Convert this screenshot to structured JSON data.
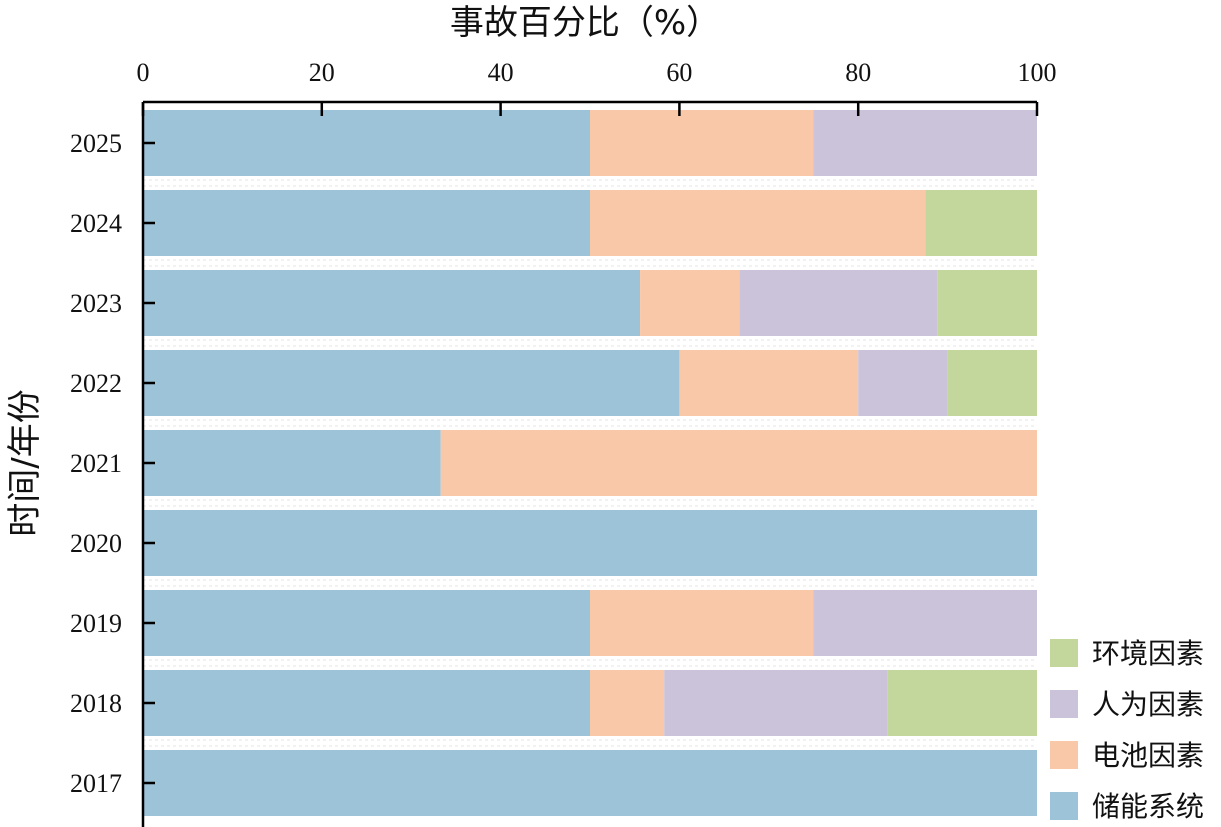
{
  "chart_data": {
    "type": "bar",
    "orientation": "horizontal",
    "stacked": true,
    "xlabel": "事故百分比（%）",
    "ylabel": "时间/年份",
    "xlim": [
      0,
      100
    ],
    "xticks": [
      "0",
      "20",
      "40",
      "60",
      "80",
      "100"
    ],
    "x_axis_position": "top",
    "categories": [
      "2025",
      "2024",
      "2023",
      "2022",
      "2021",
      "2020",
      "2019",
      "2018",
      "2017"
    ],
    "series": [
      {
        "name": "储能系统",
        "color": "#9dc3d8",
        "values": [
          50,
          50,
          55.6,
          60,
          33.3,
          100,
          50,
          50,
          100
        ]
      },
      {
        "name": "电池因素",
        "color": "#f9c8a8",
        "values": [
          25,
          37.5,
          11.1,
          20,
          66.7,
          0,
          25,
          8.3,
          0
        ]
      },
      {
        "name": "人为因素",
        "color": "#cbc3da",
        "values": [
          25,
          0,
          22.2,
          10,
          0,
          0,
          25,
          25,
          0
        ]
      },
      {
        "name": "环境因素",
        "color": "#c3d69b",
        "values": [
          0,
          12.5,
          11.1,
          10,
          0,
          0,
          0,
          16.7,
          0
        ]
      }
    ],
    "legend_position": "bottom-right",
    "legend_order": [
      "环境因素",
      "人为因素",
      "电池因素",
      "储能系统"
    ],
    "grid": false
  }
}
